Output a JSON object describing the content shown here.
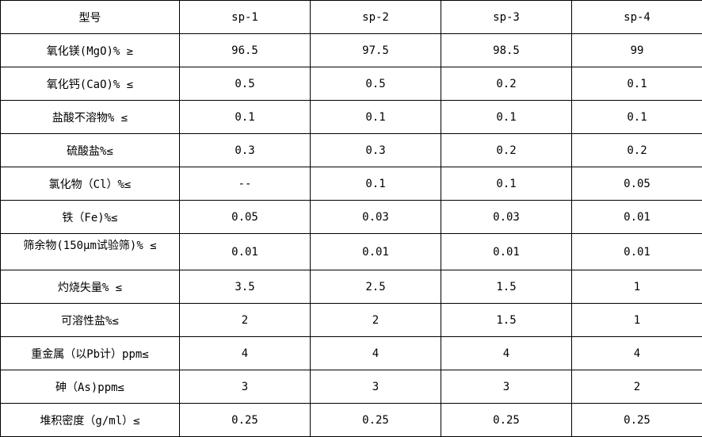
{
  "table": {
    "header": [
      "型号",
      "sp-1",
      "sp-2",
      "sp-3",
      "sp-4"
    ],
    "rows": [
      [
        "氧化镁(MgO)%  ≥",
        "96.5",
        "97.5",
        "98.5",
        "99"
      ],
      [
        "氧化钙(CaO)%  ≤",
        "0.5",
        "0.5",
        "0.2",
        "0.1"
      ],
      [
        "盐酸不溶物%  ≤",
        "0.1",
        "0.1",
        "0.1",
        "0.1"
      ],
      [
        "硫酸盐%≤",
        "0.3",
        "0.3",
        "0.2",
        "0.2"
      ],
      [
        "氯化物（Cl）%≤",
        "--",
        "0.1",
        "0.1",
        "0.05"
      ],
      [
        "铁（Fe)%≤",
        "0.05",
        "0.03",
        "0.03",
        "0.01"
      ],
      [
        "筛余物(150μm试验筛)%  ≤",
        "0.01",
        "0.01",
        "0.01",
        "0.01"
      ],
      [
        "灼烧失量%  ≤",
        "3.5",
        "2.5",
        "1.5",
        "1"
      ],
      [
        "可溶性盐%≤",
        "2",
        "2",
        "1.5",
        "1"
      ],
      [
        "重金属（以Pb计）ppm≤",
        "4",
        "4",
        "4",
        "4"
      ],
      [
        "砷（As)ppm≤",
        "3",
        "3",
        "3",
        "2"
      ],
      [
        "堆积密度（g/ml）≤",
        "0.25",
        "0.25",
        "0.25",
        "0.25"
      ]
    ]
  }
}
